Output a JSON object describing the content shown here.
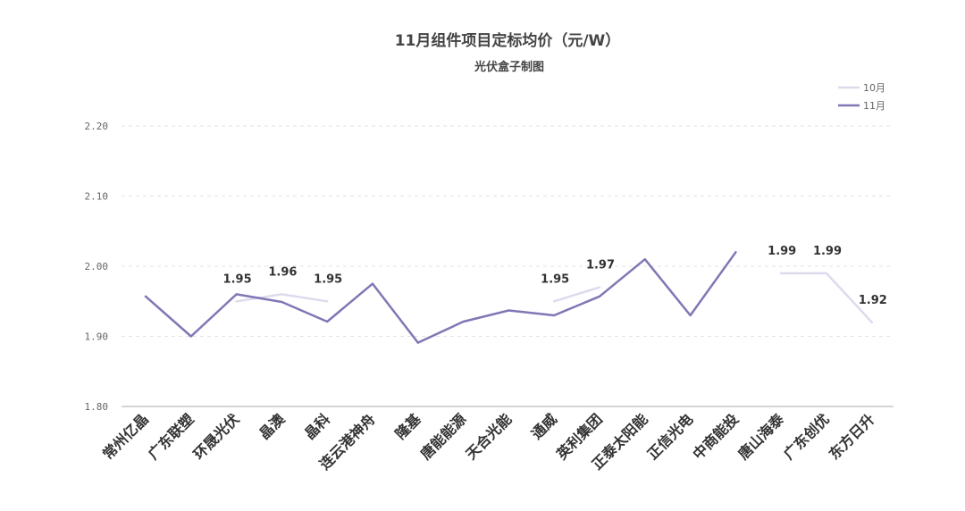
{
  "chart_data": {
    "type": "line",
    "title": "11月组件项目定标均价（元/W）",
    "subtitle": "光伏盒子制图",
    "categories": [
      "常州亿晶",
      "广东联塑",
      "环晟光伏",
      "晶澳",
      "晶科",
      "连云港神舟",
      "隆基",
      "唐能能源",
      "天合光能",
      "通威",
      "英利集团",
      "正泰太阳能",
      "正信光电",
      "中商能投",
      "唐山海泰",
      "广东创优",
      "东方日升"
    ],
    "ylim": [
      1.8,
      2.2
    ],
    "yticks": [
      "1.80",
      "1.90",
      "2.00",
      "2.10",
      "2.20"
    ],
    "grid": true,
    "legend_position": "top-right",
    "series": [
      {
        "name": "10月",
        "color": "#dcdbed",
        "values": [
          null,
          null,
          1.95,
          1.96,
          1.95,
          null,
          null,
          null,
          null,
          1.95,
          1.97,
          null,
          null,
          null,
          1.99,
          1.99,
          1.92
        ],
        "labels": [
          null,
          null,
          "1.95",
          "1.96",
          "1.95",
          null,
          null,
          null,
          null,
          "1.95",
          "1.97",
          null,
          null,
          null,
          "1.99",
          "1.99",
          "1.92"
        ]
      },
      {
        "name": "11月",
        "color": "#8077b5",
        "values": [
          1.957,
          1.9,
          1.96,
          1.949,
          1.921,
          1.975,
          1.891,
          1.921,
          1.937,
          1.93,
          1.957,
          2.01,
          1.93,
          2.02,
          null,
          null,
          null
        ]
      }
    ]
  }
}
